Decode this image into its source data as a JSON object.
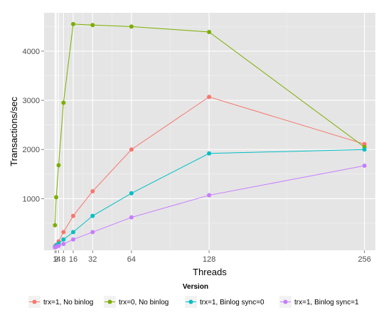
{
  "chart_data": {
    "type": "line",
    "xlabel": "Threads",
    "ylabel": "Transactions/sec",
    "x": [
      1,
      2,
      4,
      8,
      16,
      32,
      64,
      128,
      256
    ],
    "x_ticks": [
      1,
      2,
      4,
      8,
      16,
      32,
      64,
      128,
      256
    ],
    "y_ticks": [
      1000,
      2000,
      3000,
      4000
    ],
    "xlim": [
      -8,
      265
    ],
    "ylim": [
      -50,
      4780
    ],
    "grid": true,
    "legend": {
      "title": "Version",
      "position": "bottom"
    },
    "series": [
      {
        "name": "trx=1, No binlog",
        "color": "#F8766D",
        "values": [
          30,
          60,
          130,
          320,
          650,
          1150,
          2000,
          3070,
          2110
        ]
      },
      {
        "name": "trx=0, No binlog",
        "color": "#7CAE00",
        "values": [
          460,
          1030,
          1680,
          2950,
          4550,
          4530,
          4500,
          4390,
          2050
        ]
      },
      {
        "name": "trx=1, Binlog sync=0",
        "color": "#00BFC4",
        "values": [
          20,
          45,
          90,
          170,
          320,
          650,
          1110,
          1920,
          2000
        ]
      },
      {
        "name": "trx=1, Binlog sync=1",
        "color": "#C77CFF",
        "values": [
          10,
          20,
          40,
          80,
          170,
          320,
          620,
          1070,
          1670
        ]
      }
    ]
  }
}
